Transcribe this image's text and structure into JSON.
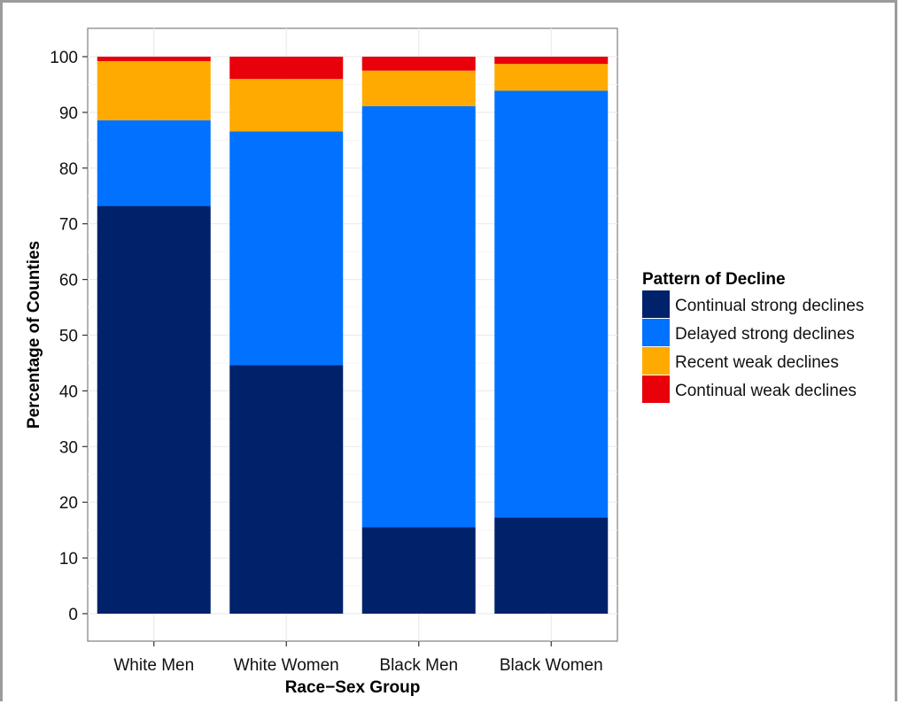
{
  "chart_data": {
    "type": "bar",
    "stacked": true,
    "title": "",
    "xlabel": "Race−Sex Group",
    "ylabel": "Percentage of Counties",
    "ylim": [
      0,
      104
    ],
    "yticks": [
      0,
      10,
      20,
      30,
      40,
      50,
      60,
      70,
      80,
      90,
      100
    ],
    "grid": true,
    "legend_title": "Pattern of Decline",
    "legend_position": "right",
    "categories": [
      "White Men",
      "White Women",
      "Black Men",
      "Black Women"
    ],
    "series": [
      {
        "name": "Continual strong declines",
        "color": "#00226b",
        "values": [
          73.2,
          44.6,
          15.5,
          17.3
        ]
      },
      {
        "name": "Delayed strong declines",
        "color": "#0072ff",
        "values": [
          15.4,
          42.0,
          75.6,
          76.6
        ]
      },
      {
        "name": "Recent weak declines",
        "color": "#ffaa00",
        "values": [
          10.6,
          9.4,
          6.4,
          4.8
        ]
      },
      {
        "name": "Continual weak declines",
        "color": "#e8000b",
        "values": [
          0.8,
          4.0,
          2.5,
          1.3
        ]
      }
    ]
  }
}
